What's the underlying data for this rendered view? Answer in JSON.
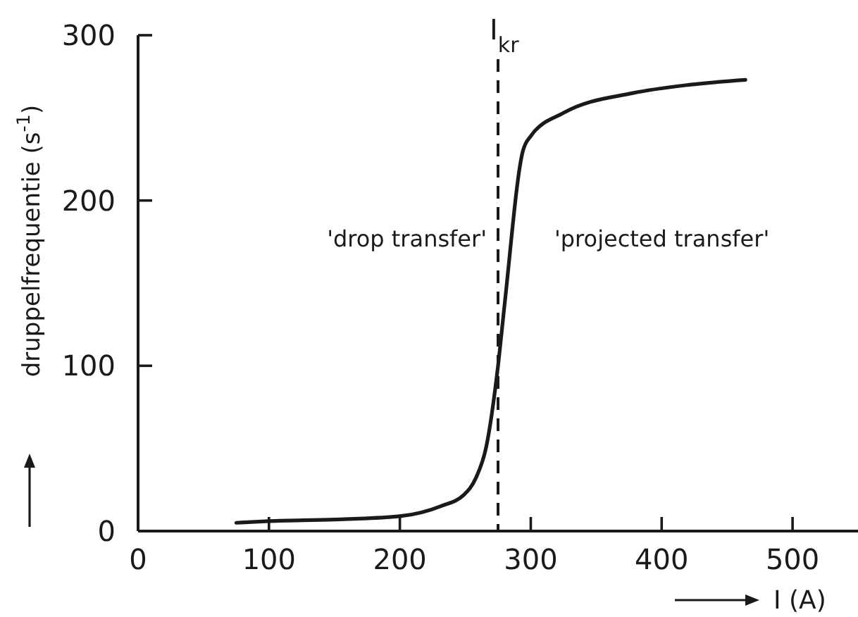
{
  "chart_data": {
    "type": "line",
    "xlabel": "I (A)",
    "ylabel": "druppelfrequentie (s$^{-1}$)",
    "x": [
      75,
      100,
      150,
      200,
      231,
      249,
      258,
      266,
      275,
      280,
      294,
      300,
      325,
      378,
      421,
      464
    ],
    "series": [
      {
        "color": "#1a1a1a",
        "values": [
          5,
          6,
          7,
          9,
          15,
          22,
          32,
          51,
          100,
          137,
          230,
          239,
          253,
          265,
          270,
          273
        ]
      }
    ],
    "xlim": [
      0,
      550
    ],
    "ylim": [
      0,
      300
    ],
    "xticks": [
      0,
      100,
      200,
      300,
      400,
      500
    ],
    "yticks": [
      0,
      100,
      200,
      300
    ],
    "ref_lines": [
      {
        "axis": "x",
        "value": 275,
        "label": "I$_{kr}$",
        "color": "#1a1a1a",
        "line_style": "dashed"
      }
    ],
    "annotations": [
      "'drop transfer'",
      "'projected transfer'"
    ],
    "grid": false,
    "marker": "none",
    "line_style": "solid"
  }
}
